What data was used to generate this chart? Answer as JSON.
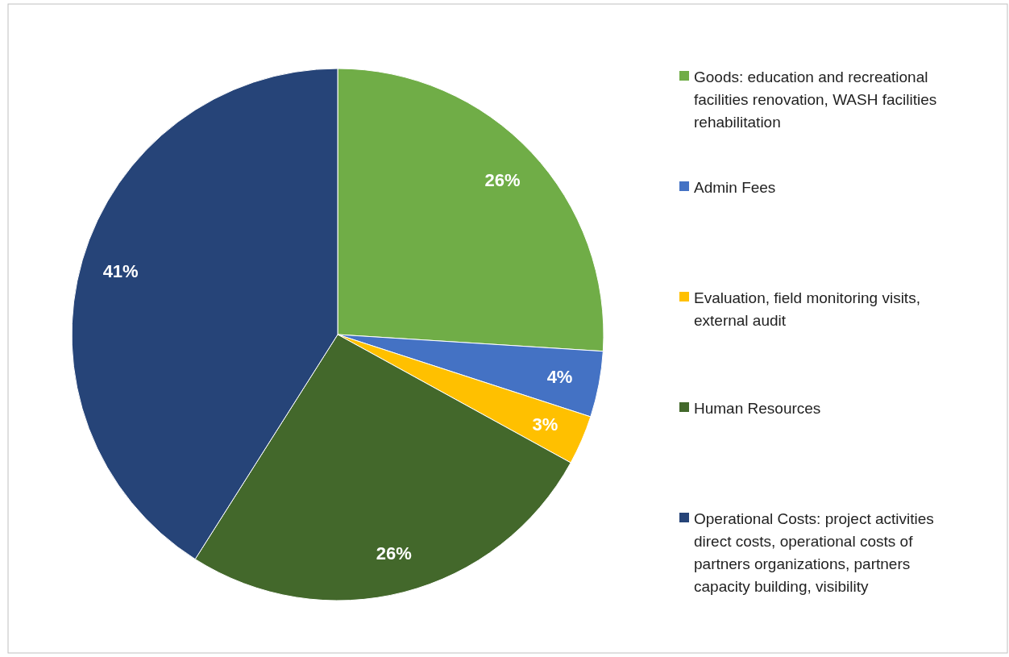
{
  "chart_data": {
    "type": "pie",
    "categories": [
      "Goods: education and recreational facilities renovation, WASH facilities rehabilitation",
      "Admin Fees",
      "Evaluation, field monitoring visits, external audit",
      "Human Resources",
      "Operational Costs: project activities direct costs, operational costs of partners organizations, partners capacity building, visibility"
    ],
    "values": [
      26,
      4,
      3,
      26,
      41
    ],
    "colors": [
      "#70ad47",
      "#4472c4",
      "#ffc000",
      "#43682b",
      "#264478"
    ],
    "value_labels": [
      "26%",
      "4%",
      "3%",
      "26%",
      "41%"
    ],
    "legend": "right"
  }
}
